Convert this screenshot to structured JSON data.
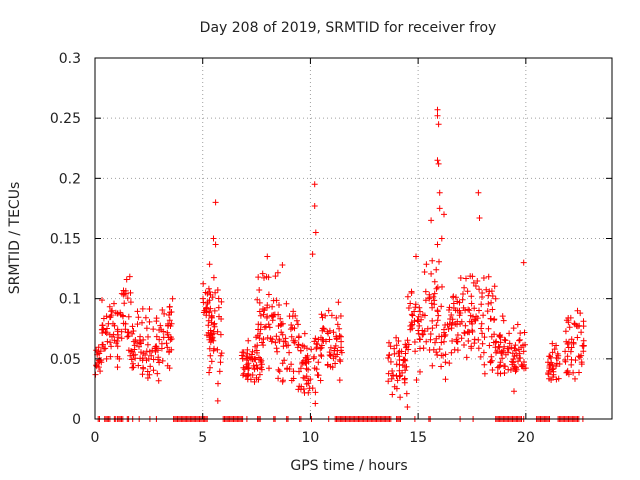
{
  "chart_data": {
    "type": "scatter",
    "title": "Day 208 of 2019, SRMTID for receiver froy",
    "xlabel": "GPS time / hours",
    "ylabel": "SRMTID / TECUs",
    "xlim": [
      0,
      24
    ],
    "ylim": [
      0,
      0.3
    ],
    "x_ticks": [
      0,
      5,
      10,
      15,
      20
    ],
    "x_tick_labels": [
      "0",
      "5",
      "10",
      "15",
      "20"
    ],
    "y_ticks": [
      0,
      0.05,
      0.1,
      0.15,
      0.2,
      0.25,
      0.3
    ],
    "y_tick_labels": [
      "0",
      "0.05",
      "0.1",
      "0.15",
      "0.2",
      "0.25",
      "0.3"
    ],
    "grid": true,
    "marker": "plus",
    "color": "#ff0000",
    "series": [
      {
        "name": "SRMTID",
        "clusters": [
          {
            "x": [
              0.0,
              0.3
            ],
            "y": [
              0.035,
              0.065
            ]
          },
          {
            "x": [
              0.3,
              1.2
            ],
            "y": [
              0.04,
              0.1
            ]
          },
          {
            "x": [
              1.2,
              1.7
            ],
            "y": [
              0.05,
              0.125
            ]
          },
          {
            "x": [
              1.7,
              2.2
            ],
            "y": [
              0.03,
              0.095
            ]
          },
          {
            "x": [
              2.2,
              3.0
            ],
            "y": [
              0.025,
              0.095
            ]
          },
          {
            "x": [
              3.0,
              3.6
            ],
            "y": [
              0.04,
              0.1
            ]
          },
          {
            "x": [
              5.0,
              5.6
            ],
            "y": [
              0.06,
              0.13
            ]
          },
          {
            "x": [
              5.2,
              5.9
            ],
            "y": [
              0.02,
              0.11
            ]
          },
          {
            "x": [
              6.8,
              7.8
            ],
            "y": [
              0.02,
              0.07
            ]
          },
          {
            "x": [
              7.5,
              8.5
            ],
            "y": [
              0.04,
              0.13
            ]
          },
          {
            "x": [
              8.5,
              9.5
            ],
            "y": [
              0.02,
              0.1
            ]
          },
          {
            "x": [
              9.5,
              10.5
            ],
            "y": [
              0.01,
              0.08
            ]
          },
          {
            "x": [
              10.5,
              11.5
            ],
            "y": [
              0.03,
              0.095
            ]
          },
          {
            "x": [
              13.6,
              14.5
            ],
            "y": [
              0.015,
              0.075
            ]
          },
          {
            "x": [
              14.5,
              15.2
            ],
            "y": [
              0.03,
              0.12
            ]
          },
          {
            "x": [
              15.2,
              16.0
            ],
            "y": [
              0.04,
              0.14
            ]
          },
          {
            "x": [
              16.0,
              17.0
            ],
            "y": [
              0.03,
              0.125
            ]
          },
          {
            "x": [
              17.0,
              17.8
            ],
            "y": [
              0.04,
              0.13
            ]
          },
          {
            "x": [
              17.8,
              18.6
            ],
            "y": [
              0.03,
              0.13
            ]
          },
          {
            "x": [
              18.6,
              19.5
            ],
            "y": [
              0.02,
              0.09
            ]
          },
          {
            "x": [
              19.5,
              20.0
            ],
            "y": [
              0.03,
              0.08
            ]
          },
          {
            "x": [
              21.0,
              21.6
            ],
            "y": [
              0.025,
              0.065
            ]
          },
          {
            "x": [
              21.8,
              22.7
            ],
            "y": [
              0.025,
              0.09
            ]
          }
        ],
        "outliers": [
          {
            "x": 5.6,
            "y": 0.18
          },
          {
            "x": 5.5,
            "y": 0.15
          },
          {
            "x": 5.6,
            "y": 0.145
          },
          {
            "x": 5.7,
            "y": 0.015
          },
          {
            "x": 10.2,
            "y": 0.195
          },
          {
            "x": 10.2,
            "y": 0.177
          },
          {
            "x": 10.25,
            "y": 0.155
          },
          {
            "x": 10.1,
            "y": 0.137
          },
          {
            "x": 8.0,
            "y": 0.135
          },
          {
            "x": 8.7,
            "y": 0.128
          },
          {
            "x": 15.9,
            "y": 0.257
          },
          {
            "x": 15.9,
            "y": 0.252
          },
          {
            "x": 15.95,
            "y": 0.245
          },
          {
            "x": 15.9,
            "y": 0.215
          },
          {
            "x": 15.95,
            "y": 0.212
          },
          {
            "x": 16.0,
            "y": 0.188
          },
          {
            "x": 16.0,
            "y": 0.175
          },
          {
            "x": 16.2,
            "y": 0.17
          },
          {
            "x": 15.6,
            "y": 0.165
          },
          {
            "x": 17.8,
            "y": 0.188
          },
          {
            "x": 17.85,
            "y": 0.167
          },
          {
            "x": 15.9,
            "y": 0.145
          },
          {
            "x": 16.1,
            "y": 0.15
          },
          {
            "x": 14.9,
            "y": 0.135
          },
          {
            "x": 19.9,
            "y": 0.13
          },
          {
            "x": 18.6,
            "y": 0.1
          },
          {
            "x": 22.4,
            "y": 0.09
          },
          {
            "x": 11.3,
            "y": 0.097
          },
          {
            "x": 3.6,
            "y": 0.1
          },
          {
            "x": 14.5,
            "y": 0.01
          }
        ],
        "zero_segments": [
          [
            0.15,
            0.25
          ],
          [
            0.45,
            0.7
          ],
          [
            0.9,
            1.0
          ],
          [
            1.05,
            1.3
          ],
          [
            1.5,
            1.6
          ],
          [
            1.75,
            1.8
          ],
          [
            2.05,
            2.1
          ],
          [
            2.55,
            2.6
          ],
          [
            2.85,
            2.9
          ],
          [
            3.65,
            5.25
          ],
          [
            5.95,
            6.9
          ],
          [
            7.05,
            7.1
          ],
          [
            7.55,
            7.7
          ],
          [
            8.3,
            8.4
          ],
          [
            8.9,
            9.0
          ],
          [
            9.5,
            9.6
          ],
          [
            10.05,
            10.1
          ],
          [
            10.85,
            10.9
          ],
          [
            11.15,
            13.75
          ],
          [
            14.0,
            14.2
          ],
          [
            14.85,
            14.9
          ],
          [
            15.5,
            15.6
          ],
          [
            16.95,
            17.0
          ],
          [
            17.55,
            17.6
          ],
          [
            18.6,
            19.8
          ],
          [
            19.9,
            19.95
          ],
          [
            20.5,
            21.1
          ],
          [
            21.5,
            22.5
          ],
          [
            22.65,
            22.7
          ]
        ]
      }
    ]
  }
}
